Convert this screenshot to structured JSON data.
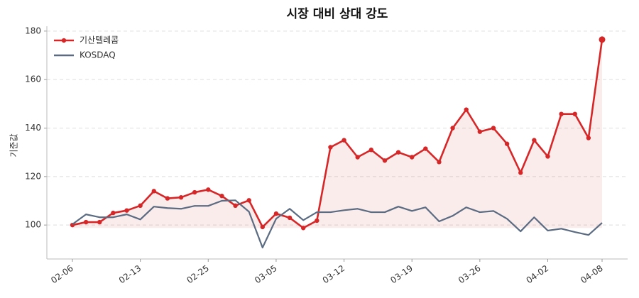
{
  "chart_data": {
    "type": "line",
    "title": "시장 대비 상대 강도",
    "y_label": "기준값",
    "categories": [
      "02-06",
      null,
      null,
      null,
      null,
      "02-13",
      null,
      null,
      null,
      null,
      "02-25",
      null,
      null,
      null,
      null,
      "03-05",
      null,
      null,
      null,
      null,
      "03-12",
      null,
      null,
      null,
      null,
      "03-19",
      null,
      null,
      null,
      null,
      "03-26",
      null,
      null,
      null,
      null,
      "04-02",
      null,
      null,
      null,
      "04-08"
    ],
    "series": [
      {
        "name": "기산텔레콤",
        "color": "#d62728",
        "markers": true,
        "fill": true,
        "values": [
          100,
          101.2,
          101.2,
          105,
          106,
          108,
          114,
          111,
          111.4,
          113.5,
          114.6,
          112,
          108,
          110.2,
          99.2,
          104.7,
          103,
          98.8,
          101.8,
          132.1,
          135,
          128,
          131,
          126.6,
          130,
          128,
          131.5,
          126,
          140,
          147.6,
          138.5,
          140,
          133.5,
          121.6,
          135,
          128.3,
          145.8,
          145.8,
          135.9,
          176.5
        ]
      },
      {
        "name": "KOSDAQ",
        "color": "#5a6b82",
        "markers": false,
        "fill": false,
        "values": [
          100.3,
          104.4,
          103.2,
          103.2,
          104.4,
          102.3,
          107.6,
          107,
          106.7,
          107.9,
          107.9,
          110,
          110.2,
          105.5,
          90.7,
          102.6,
          106.7,
          102,
          105.3,
          105.3,
          106.1,
          106.7,
          105.3,
          105.3,
          107.6,
          105.8,
          107.3,
          101.5,
          103.8,
          107.3,
          105.3,
          105.8,
          102.6,
          97.4,
          103.2,
          97.7,
          98.5,
          97.1,
          95.9,
          100.9
        ]
      }
    ],
    "ylim": [
      86,
      182
    ],
    "yticks": [
      100,
      120,
      140,
      160,
      180
    ],
    "grid": true,
    "legend": "upper left"
  }
}
